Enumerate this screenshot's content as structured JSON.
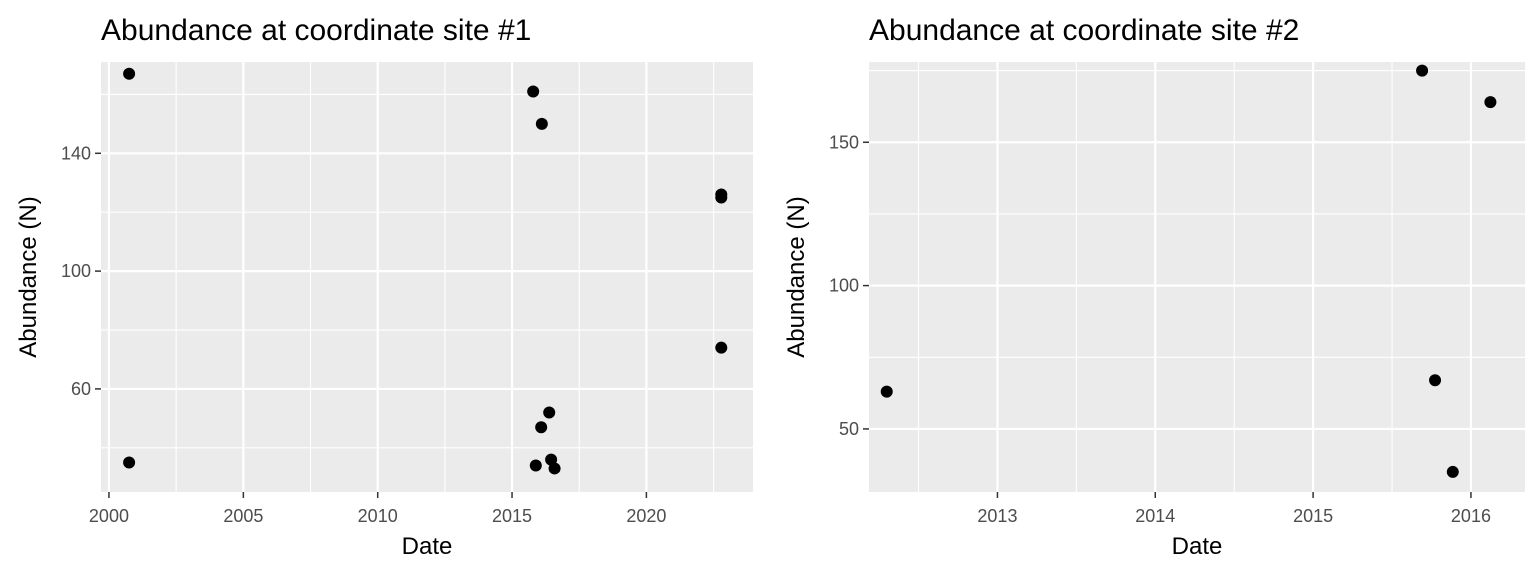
{
  "chart_data": [
    {
      "type": "scatter",
      "title": "Abundance at coordinate site #1",
      "xlabel": "Date",
      "ylabel": "Abundance (N)",
      "x_is_date": true,
      "xlim": [
        "1999-09-15",
        "2023-12-20"
      ],
      "ylim": [
        25,
        171
      ],
      "x_ticks": [
        "2000-01-01",
        "2005-01-01",
        "2010-01-01",
        "2015-01-01",
        "2020-01-01"
      ],
      "x_tick_labels": [
        "2000",
        "2005",
        "2010",
        "2015",
        "2020"
      ],
      "y_ticks": [
        60,
        100,
        140
      ],
      "y_tick_labels": [
        "60",
        "100",
        "140"
      ],
      "grid": true,
      "background": "#ebebeb",
      "point_color": "#000000",
      "points": [
        {
          "x": "2000-10-01",
          "y": 167
        },
        {
          "x": "2000-10-01",
          "y": 35
        },
        {
          "x": "2015-10-15",
          "y": 161
        },
        {
          "x": "2016-02-10",
          "y": 150
        },
        {
          "x": "2015-11-20",
          "y": 34
        },
        {
          "x": "2016-02-01",
          "y": 47
        },
        {
          "x": "2016-05-20",
          "y": 52
        },
        {
          "x": "2016-06-15",
          "y": 36
        },
        {
          "x": "2016-08-01",
          "y": 33
        },
        {
          "x": "2022-10-15",
          "y": 126
        },
        {
          "x": "2022-10-15",
          "y": 125
        },
        {
          "x": "2022-10-15",
          "y": 74
        }
      ]
    },
    {
      "type": "scatter",
      "title": "Abundance at coordinate site #2",
      "xlabel": "Date",
      "ylabel": "Abundance (N)",
      "x_is_date": true,
      "xlim": [
        "2012-03-10",
        "2016-05-05"
      ],
      "ylim": [
        28,
        178
      ],
      "x_ticks": [
        "2013-01-01",
        "2014-01-01",
        "2015-01-01",
        "2016-01-01"
      ],
      "x_tick_labels": [
        "2013",
        "2014",
        "2015",
        "2016"
      ],
      "y_ticks": [
        50,
        100,
        150
      ],
      "y_tick_labels": [
        "50",
        "100",
        "150"
      ],
      "grid": true,
      "background": "#ebebeb",
      "point_color": "#000000",
      "points": [
        {
          "x": "2012-04-20",
          "y": 63
        },
        {
          "x": "2015-09-10",
          "y": 175
        },
        {
          "x": "2016-02-15",
          "y": 164
        },
        {
          "x": "2015-10-10",
          "y": 67
        },
        {
          "x": "2015-11-20",
          "y": 35
        }
      ]
    }
  ]
}
